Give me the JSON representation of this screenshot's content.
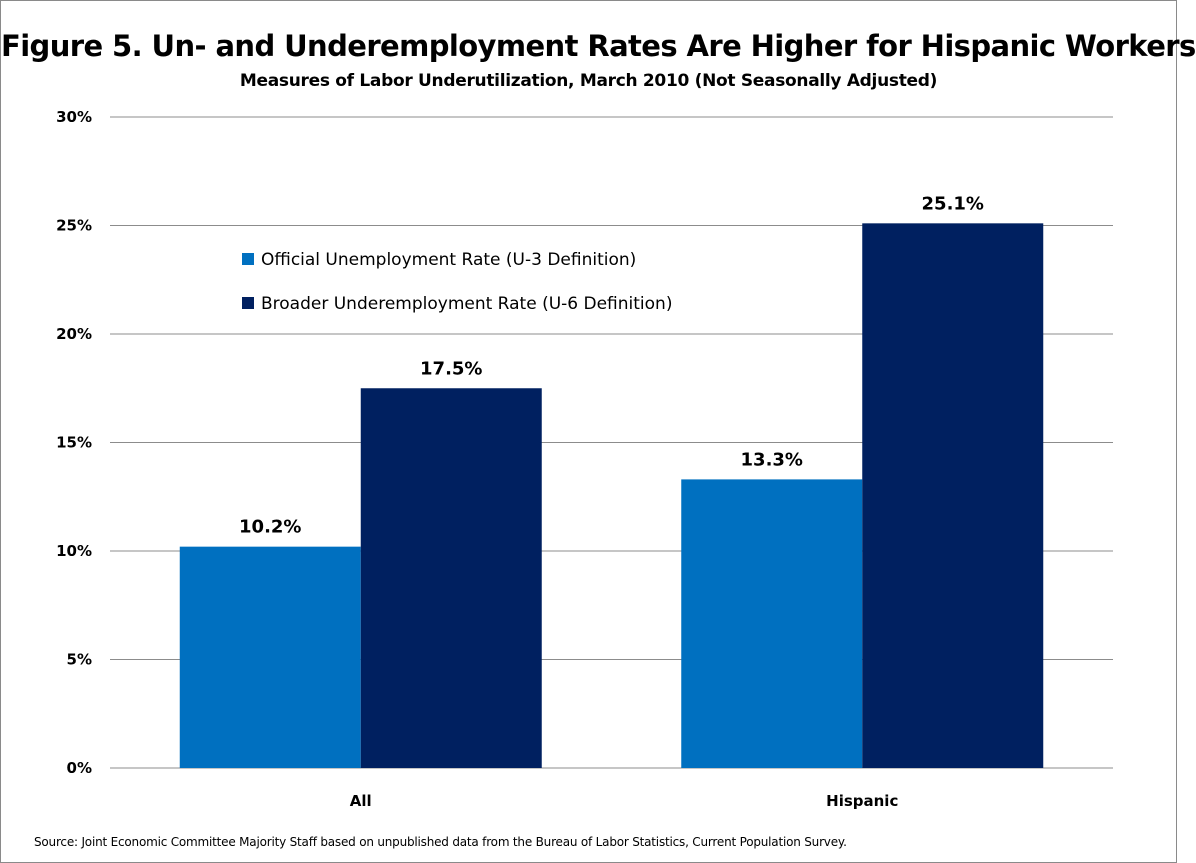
{
  "title": "Figure 5. Un- and Underemployment Rates Are Higher for Hispanic Workers",
  "subtitle": "Measures of Labor Underutilization, March 2010 (Not Seasonally Adjusted)",
  "source": "Source: Joint Economic Committee Majority Staff based on unpublished data from the Bureau of Labor Statistics, Current Population Survey.",
  "chart_data": {
    "type": "bar",
    "categories": [
      "All",
      "Hispanic"
    ],
    "series": [
      {
        "name": "Official Unemployment Rate (U-3 Definition)",
        "values": [
          10.2,
          13.3
        ],
        "labels": [
          "10.2%",
          "13.3%"
        ],
        "color": "#0070C0"
      },
      {
        "name": "Broader Underemployment Rate (U-6 Definition)",
        "values": [
          17.5,
          25.1
        ],
        "labels": [
          "17.5%",
          "25.1%"
        ],
        "color": "#002060"
      }
    ],
    "ylim": [
      0,
      30
    ],
    "yticks": [
      0,
      5,
      10,
      15,
      20,
      25,
      30
    ],
    "ytick_labels": [
      "0%",
      "5%",
      "10%",
      "15%",
      "20%",
      "25%",
      "30%"
    ],
    "grid": true,
    "legend_position": "upper-left inside plot"
  }
}
